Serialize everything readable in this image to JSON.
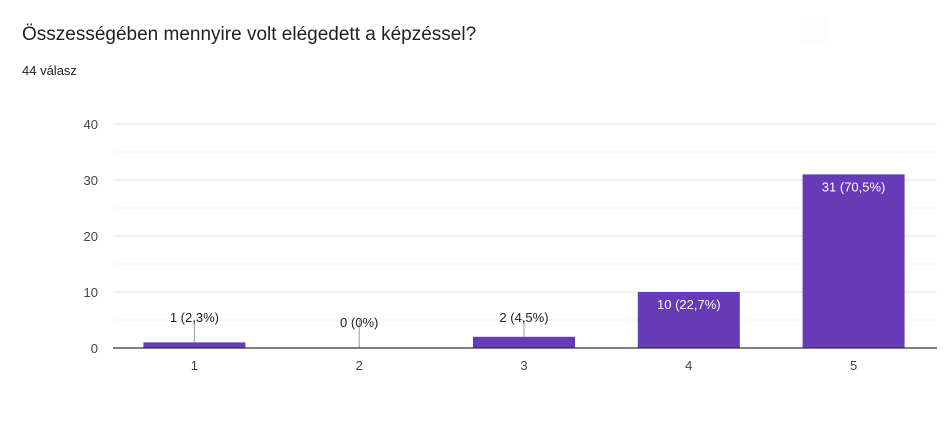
{
  "question": {
    "title": "Összességében mennyire volt elégedett a képzéssel?",
    "response_count": "44 válasz"
  },
  "colors": {
    "bar": "#673ab7",
    "grid": "#e6e6e6",
    "baseline": "#333333",
    "label_inside": "#ffffff",
    "label_outside": "#222222"
  },
  "chart_data": {
    "type": "bar",
    "categories": [
      "1",
      "2",
      "3",
      "4",
      "5"
    ],
    "values": [
      1,
      0,
      2,
      10,
      31
    ],
    "data_labels": [
      "1 (2,3%)",
      "0 (0%)",
      "2 (4,5%)",
      "10 (22,7%)",
      "31 (70,5%)"
    ],
    "yticks": [
      "0",
      "10",
      "20",
      "30",
      "40"
    ],
    "ylim": [
      0,
      40
    ],
    "title": "",
    "xlabel": "",
    "ylabel": "",
    "grid": true,
    "legend": "none"
  }
}
